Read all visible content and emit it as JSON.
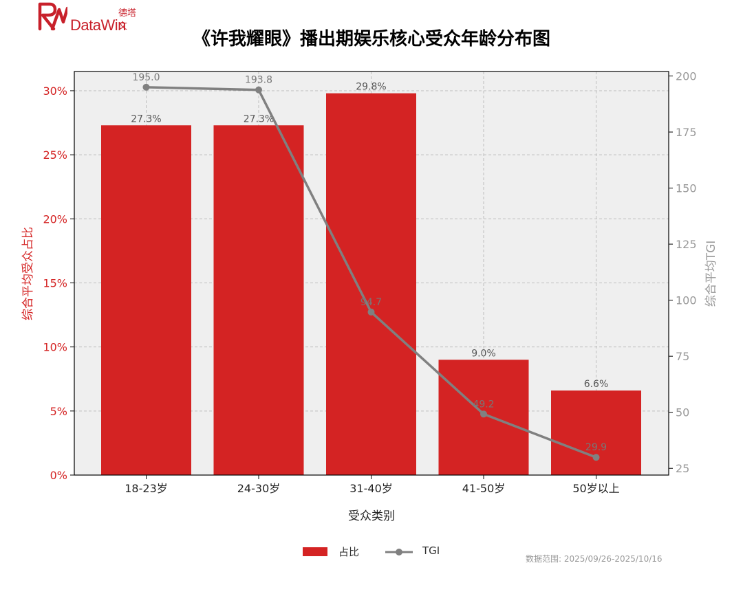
{
  "brand": {
    "logo_cn": "德塔文",
    "logo_en": "DataWin"
  },
  "chart_data": {
    "type": "bar",
    "title": "《许我耀眼》播出期娱乐核心受众年龄分布图",
    "categories": [
      "18-23岁",
      "24-30岁",
      "31-40岁",
      "41-50岁",
      "50岁以上"
    ],
    "xlabel": "受众类别",
    "ylabel_left": "综合平均受众占比",
    "ylabel_right": "综合平均TGI",
    "ylim_left": [
      0,
      31.5
    ],
    "ylim_right": [
      22,
      202
    ],
    "left_ticks": [
      "0%",
      "5%",
      "10%",
      "15%",
      "20%",
      "25%",
      "30%"
    ],
    "right_ticks": [
      25,
      50,
      75,
      100,
      125,
      150,
      175,
      200
    ],
    "grid": true,
    "legend_position": "bottom-center",
    "series": [
      {
        "name": "占比",
        "kind": "bar",
        "axis": "left",
        "color": "#d42323",
        "values": [
          27.3,
          27.3,
          29.8,
          9.0,
          6.6
        ],
        "labels": [
          "27.3%",
          "27.3%",
          "29.8%",
          "9.0%",
          "6.6%"
        ]
      },
      {
        "name": "TGI",
        "kind": "line",
        "axis": "right",
        "color": "#808080",
        "values": [
          195.0,
          193.8,
          94.7,
          49.2,
          29.9
        ],
        "labels": [
          "195.0",
          "193.8",
          "94.7",
          "49.2",
          "29.9"
        ]
      }
    ]
  },
  "footnote": "数据范围: 2025/09/26-2025/10/16"
}
